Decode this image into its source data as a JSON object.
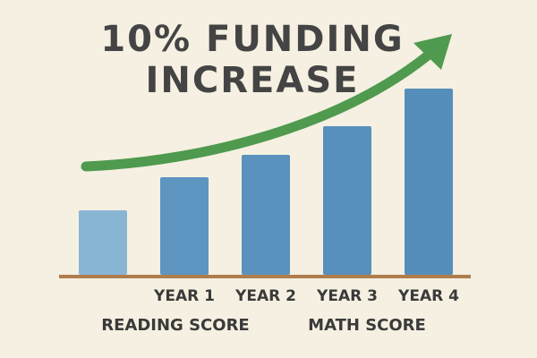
{
  "chart_data": {
    "type": "bar",
    "title": [
      "10% FUNDING",
      "INCREASE"
    ],
    "categories": [
      null,
      "YEAR 1",
      "YEAR 2",
      "YEAR 3",
      "YEAR 4"
    ],
    "values": [
      72,
      109,
      134,
      166,
      208
    ],
    "colors": [
      "#7fb0d4",
      "#4f8dbd",
      "#4c89ba",
      "#4a87b8",
      "#4785b6"
    ],
    "ylim": [
      0,
      230
    ],
    "annotations": [
      "READING SCORE",
      "MATH SCORE"
    ]
  }
}
